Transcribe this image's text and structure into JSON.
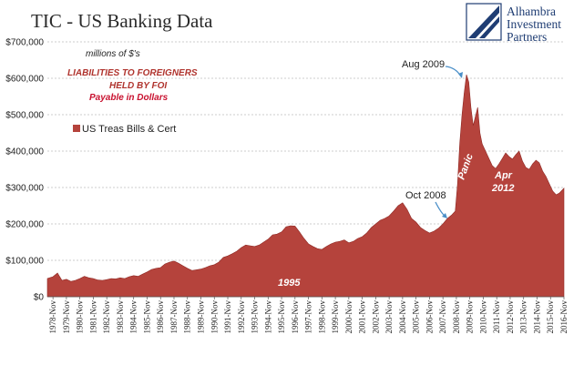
{
  "header": {
    "title": "TIC - US Banking Data",
    "brand_lines": [
      "Alhambra",
      "Investment",
      "Partners"
    ]
  },
  "notes": {
    "units": "millions of $'s",
    "label_lines": [
      "LIABILITIES TO FOREIGNERS",
      "HELD BY FOI"
    ],
    "label_sub": "Payable  in Dollars"
  },
  "legend": {
    "label": "US Treas Bills & Cert"
  },
  "annotations": {
    "aug2009": "Aug 2009",
    "oct2008": "Oct 2008",
    "panic": "Panic",
    "apr2012_line1": "Apr",
    "apr2012_line2": "2012",
    "y1995": "1995"
  },
  "colors": {
    "area": "#b5433c",
    "area_stroke": "#8f2a25",
    "grid": "#bdbdbd",
    "arrow": "#4a8fc8",
    "brand": "#1f3d73"
  },
  "chart_data": {
    "type": "area",
    "series": [
      {
        "name": "US Treas Bills & Cert",
        "points": [
          [
            "1978-06",
            50000
          ],
          [
            "1978-11",
            55000
          ],
          [
            "1979-03",
            65000
          ],
          [
            "1979-07",
            45000
          ],
          [
            "1979-11",
            48000
          ],
          [
            "1980-03",
            42000
          ],
          [
            "1980-07",
            45000
          ],
          [
            "1980-11",
            50000
          ],
          [
            "1981-03",
            56000
          ],
          [
            "1981-07",
            52000
          ],
          [
            "1981-11",
            50000
          ],
          [
            "1982-03",
            46000
          ],
          [
            "1982-07",
            45000
          ],
          [
            "1982-11",
            47000
          ],
          [
            "1983-03",
            50000
          ],
          [
            "1983-07",
            49000
          ],
          [
            "1983-11",
            52000
          ],
          [
            "1984-03",
            50000
          ],
          [
            "1984-07",
            55000
          ],
          [
            "1984-11",
            58000
          ],
          [
            "1985-03",
            56000
          ],
          [
            "1985-07",
            62000
          ],
          [
            "1985-11",
            68000
          ],
          [
            "1986-03",
            75000
          ],
          [
            "1986-07",
            78000
          ],
          [
            "1986-11",
            80000
          ],
          [
            "1987-03",
            90000
          ],
          [
            "1987-07",
            95000
          ],
          [
            "1987-11",
            98000
          ],
          [
            "1988-03",
            92000
          ],
          [
            "1988-07",
            85000
          ],
          [
            "1988-11",
            78000
          ],
          [
            "1989-03",
            72000
          ],
          [
            "1989-07",
            74000
          ],
          [
            "1989-11",
            76000
          ],
          [
            "1990-03",
            80000
          ],
          [
            "1990-07",
            85000
          ],
          [
            "1990-11",
            88000
          ],
          [
            "1991-03",
            95000
          ],
          [
            "1991-07",
            108000
          ],
          [
            "1991-11",
            112000
          ],
          [
            "1992-03",
            118000
          ],
          [
            "1992-07",
            125000
          ],
          [
            "1992-11",
            135000
          ],
          [
            "1993-03",
            142000
          ],
          [
            "1993-07",
            140000
          ],
          [
            "1993-11",
            138000
          ],
          [
            "1994-03",
            142000
          ],
          [
            "1994-07",
            150000
          ],
          [
            "1994-11",
            158000
          ],
          [
            "1995-03",
            170000
          ],
          [
            "1995-07",
            172000
          ],
          [
            "1995-11",
            178000
          ],
          [
            "1996-03",
            192000
          ],
          [
            "1996-07",
            195000
          ],
          [
            "1996-11",
            194000
          ],
          [
            "1997-03",
            178000
          ],
          [
            "1997-07",
            160000
          ],
          [
            "1997-11",
            145000
          ],
          [
            "1998-03",
            138000
          ],
          [
            "1998-07",
            132000
          ],
          [
            "1998-11",
            130000
          ],
          [
            "1999-03",
            138000
          ],
          [
            "1999-07",
            145000
          ],
          [
            "1999-11",
            150000
          ],
          [
            "2000-03",
            152000
          ],
          [
            "2000-07",
            156000
          ],
          [
            "2000-11",
            148000
          ],
          [
            "2001-03",
            152000
          ],
          [
            "2001-07",
            160000
          ],
          [
            "2001-11",
            165000
          ],
          [
            "2002-03",
            175000
          ],
          [
            "2002-07",
            190000
          ],
          [
            "2002-11",
            200000
          ],
          [
            "2003-03",
            210000
          ],
          [
            "2003-07",
            215000
          ],
          [
            "2003-11",
            222000
          ],
          [
            "2004-03",
            235000
          ],
          [
            "2004-07",
            250000
          ],
          [
            "2004-11",
            258000
          ],
          [
            "2005-03",
            240000
          ],
          [
            "2005-07",
            215000
          ],
          [
            "2005-11",
            205000
          ],
          [
            "2006-03",
            190000
          ],
          [
            "2006-07",
            182000
          ],
          [
            "2006-11",
            175000
          ],
          [
            "2007-03",
            180000
          ],
          [
            "2007-07",
            188000
          ],
          [
            "2007-11",
            200000
          ],
          [
            "2008-03",
            215000
          ],
          [
            "2008-07",
            225000
          ],
          [
            "2008-10",
            235000
          ],
          [
            "2008-12",
            310000
          ],
          [
            "2009-02",
            420000
          ],
          [
            "2009-04",
            500000
          ],
          [
            "2009-06",
            560000
          ],
          [
            "2009-08",
            610000
          ],
          [
            "2009-10",
            590000
          ],
          [
            "2009-12",
            520000
          ],
          [
            "2010-02",
            470000
          ],
          [
            "2010-04",
            495000
          ],
          [
            "2010-06",
            520000
          ],
          [
            "2010-08",
            450000
          ],
          [
            "2010-10",
            420000
          ],
          [
            "2011-01",
            400000
          ],
          [
            "2011-04",
            380000
          ],
          [
            "2011-07",
            360000
          ],
          [
            "2011-10",
            352000
          ],
          [
            "2012-01",
            365000
          ],
          [
            "2012-04",
            380000
          ],
          [
            "2012-07",
            395000
          ],
          [
            "2012-10",
            385000
          ],
          [
            "2013-01",
            378000
          ],
          [
            "2013-04",
            390000
          ],
          [
            "2013-07",
            400000
          ],
          [
            "2013-10",
            372000
          ],
          [
            "2014-01",
            355000
          ],
          [
            "2014-04",
            350000
          ],
          [
            "2014-07",
            365000
          ],
          [
            "2014-10",
            375000
          ],
          [
            "2015-01",
            368000
          ],
          [
            "2015-04",
            345000
          ],
          [
            "2015-07",
            330000
          ],
          [
            "2015-10",
            310000
          ],
          [
            "2016-01",
            290000
          ],
          [
            "2016-04",
            280000
          ],
          [
            "2016-07",
            285000
          ],
          [
            "2016-11",
            298000
          ]
        ]
      }
    ],
    "xlabels": [
      "1978-Nov",
      "1979-Nov",
      "1980-Nov",
      "1981-Nov",
      "1982-Nov",
      "1983-Nov",
      "1984-Nov",
      "1985-Nov",
      "1986-Nov",
      "1987-Nov",
      "1988-Nov",
      "1989-Nov",
      "1990-Nov",
      "1991-Nov",
      "1992-Nov",
      "1993-Nov",
      "1994-Nov",
      "1995-Nov",
      "1996-Nov",
      "1997-Nov",
      "1998-Nov",
      "1999-Nov",
      "2000-Nov",
      "2001-Nov",
      "2002-Nov",
      "2003-Nov",
      "2004-Nov",
      "2005-Nov",
      "2006-Nov",
      "2007-Nov",
      "2008-Nov",
      "2009-Nov",
      "2010-Nov",
      "2011-Nov",
      "2012-Nov",
      "2013-Nov",
      "2014-Nov",
      "2015-Nov",
      "2016-Nov"
    ],
    "yticks": [
      0,
      100000,
      200000,
      300000,
      400000,
      500000,
      600000,
      700000
    ],
    "ytick_labels": [
      "$0",
      "$100,000",
      "$200,000",
      "$300,000",
      "$400,000",
      "$500,000",
      "$600,000",
      "$700,000"
    ],
    "ylim": [
      0,
      700000
    ],
    "xrange": [
      "1978-06",
      "2016-11"
    ],
    "grid": true,
    "legend_position": "left"
  }
}
